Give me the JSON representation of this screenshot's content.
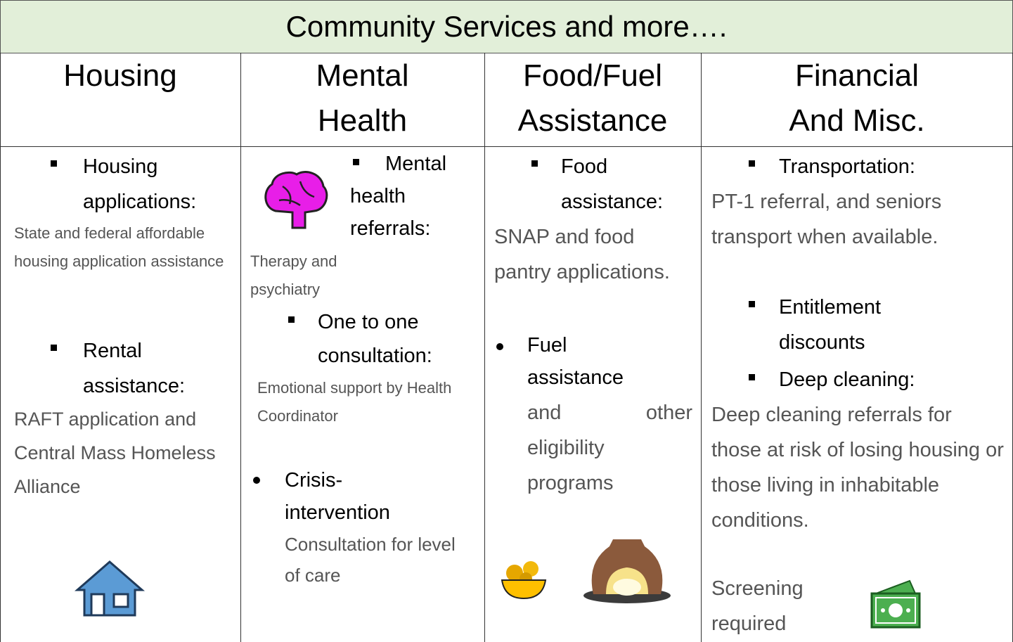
{
  "title": "Community Services and more….",
  "columns": [
    {
      "heading": [
        "Housing"
      ],
      "items": [
        {
          "label": "Housing applications:",
          "description": "State and federal affordable housing application assistance"
        },
        {
          "label": "Rental assistance:",
          "description": "RAFT application and Central Mass Homeless Alliance"
        }
      ]
    },
    {
      "heading": [
        "Mental",
        "Health"
      ],
      "items": [
        {
          "label": "Mental health referrals:",
          "description": "Therapy and psychiatry"
        },
        {
          "label": "One to one consultation:",
          "description": "Emotional support by Health Coordinator"
        },
        {
          "label": "Crisis-intervention",
          "description": "Consultation for level of care"
        }
      ]
    },
    {
      "heading": [
        "Food/Fuel",
        "Assistance"
      ],
      "items": [
        {
          "label": "Food assistance:",
          "description": "SNAP and food pantry applications."
        },
        {
          "label": "Fuel assistance",
          "description": "and other eligibility programs"
        }
      ]
    },
    {
      "heading": [
        "Financial",
        "And Misc."
      ],
      "items": [
        {
          "label": "Transportation:",
          "description": "PT-1 referral, and seniors transport when available."
        },
        {
          "label": "Entitlement discounts"
        },
        {
          "label": "Deep cleaning:",
          "description": "Deep cleaning referrals for those at risk of losing housing or those living in inhabitable conditions."
        },
        {
          "label": "Screening required"
        }
      ]
    }
  ]
}
